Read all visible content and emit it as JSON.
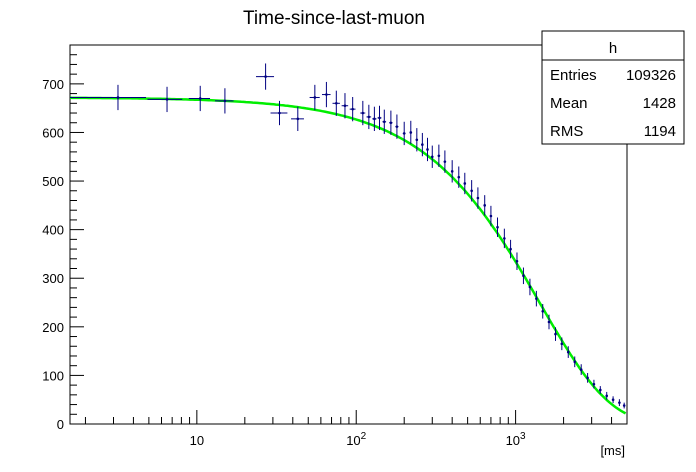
{
  "chart_data": {
    "type": "scatter",
    "title": "Time-since-last-muon",
    "xlabel": "[ms]",
    "ylabel": "",
    "xscale": "log",
    "xlim": [
      1.6,
      5000
    ],
    "ylim": [
      0,
      780
    ],
    "grid": false,
    "y_ticks": [
      0,
      100,
      200,
      300,
      400,
      500,
      600,
      700
    ],
    "x_ticks_major": [
      {
        "value": 10,
        "base": "10",
        "exp": ""
      },
      {
        "value": 100,
        "base": "10",
        "exp": "2"
      },
      {
        "value": 1000,
        "base": "10",
        "exp": "3"
      }
    ],
    "series": [
      {
        "kind": "histogram-points",
        "color": "#000080",
        "x": [
          3.2,
          6.5,
          10.5,
          15,
          27,
          33,
          43,
          55,
          65,
          75,
          85,
          95,
          110,
          120,
          130,
          140,
          150,
          165,
          180,
          200,
          220,
          240,
          260,
          280,
          300,
          330,
          360,
          400,
          440,
          480,
          530,
          580,
          640,
          700,
          770,
          850,
          930,
          1020,
          1120,
          1230,
          1350,
          1480,
          1620,
          1780,
          1950,
          2140,
          2350,
          2580,
          2830,
          3100,
          3400,
          3730,
          4090,
          4480,
          4800
        ],
        "y": [
          672,
          668,
          670,
          665,
          715,
          640,
          628,
          672,
          678,
          660,
          655,
          648,
          640,
          632,
          628,
          630,
          622,
          620,
          612,
          598,
          600,
          585,
          575,
          565,
          550,
          552,
          540,
          520,
          508,
          495,
          480,
          465,
          450,
          428,
          405,
          382,
          360,
          335,
          305,
          282,
          258,
          232,
          210,
          185,
          165,
          148,
          128,
          112,
          95,
          82,
          70,
          58,
          50,
          44,
          38
        ],
        "yerr": [
          26,
          26,
          26,
          26,
          27,
          25,
          25,
          26,
          26,
          26,
          26,
          25,
          25,
          25,
          25,
          25,
          25,
          25,
          25,
          24,
          24,
          24,
          24,
          24,
          23,
          23,
          23,
          23,
          22,
          22,
          22,
          22,
          21,
          21,
          20,
          20,
          19,
          18,
          17,
          17,
          16,
          15,
          15,
          14,
          13,
          12,
          11,
          11,
          10,
          9,
          8,
          8,
          7,
          7,
          6
        ],
        "xerr_low": [
          1.6,
          1.6,
          1.6,
          2,
          3.5,
          4,
          4,
          4,
          4,
          4,
          4,
          4,
          4,
          4,
          4,
          4,
          4,
          4,
          4,
          4,
          4,
          4,
          4,
          4,
          4,
          4,
          4,
          4,
          4,
          4,
          4,
          4,
          4,
          4,
          4,
          4,
          4,
          4,
          4,
          4,
          4,
          4,
          4,
          4,
          4,
          4,
          4,
          4,
          4,
          4,
          4,
          4,
          4,
          4,
          4
        ],
        "xerr_high": [
          1.6,
          1.6,
          1.6,
          2,
          3.5,
          4,
          4,
          4,
          4,
          4,
          4,
          4,
          4,
          4,
          4,
          4,
          4,
          4,
          4,
          4,
          4,
          4,
          4,
          4,
          4,
          4,
          4,
          4,
          4,
          4,
          4,
          4,
          4,
          4,
          4,
          4,
          4,
          4,
          4,
          4,
          4,
          4,
          4,
          4,
          4,
          4,
          4,
          4,
          4,
          4,
          4,
          4,
          4,
          4,
          4
        ]
      },
      {
        "kind": "fit-curve",
        "color": "#00ee00",
        "amplitude": 672,
        "tau": 1430,
        "x_start": 1.6,
        "x_end": 4900
      }
    ],
    "stats_box": {
      "name": "h",
      "rows": [
        {
          "label": "Entries",
          "value": "109326"
        },
        {
          "label": "Mean",
          "value": "1428"
        },
        {
          "label": "RMS",
          "value": "1194"
        }
      ]
    }
  }
}
